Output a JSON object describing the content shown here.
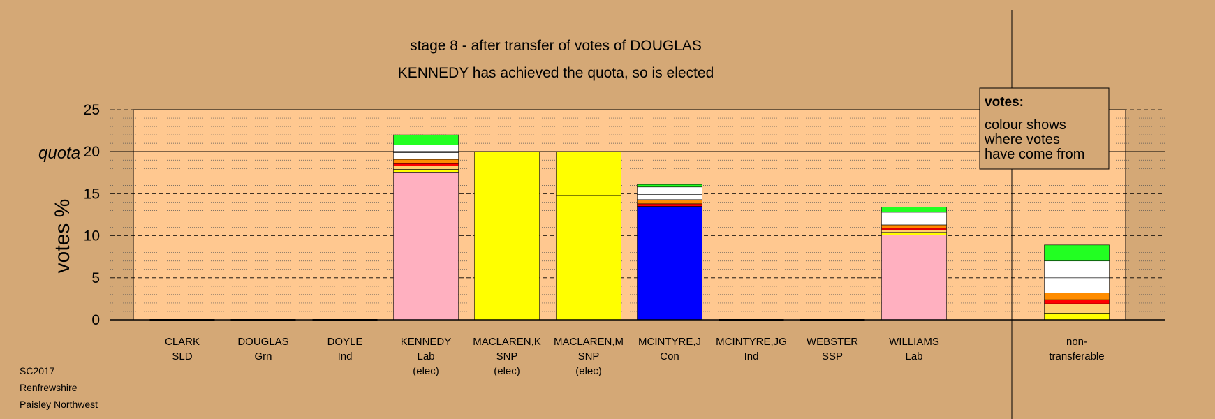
{
  "chart_data": {
    "type": "bar",
    "stacked": true,
    "title": "stage 8 - after transfer of votes of DOUGLAS",
    "subtitle": "KENNEDY has achieved the quota, so is elected",
    "ylabel": "votes %",
    "ylim": [
      0,
      25
    ],
    "yticks": [
      0,
      5,
      10,
      15,
      20,
      25
    ],
    "quota": 20,
    "quota_label": "quota",
    "grid": true,
    "legend": {
      "title": "votes:",
      "lines": [
        "colour shows",
        "where votes",
        "have come from"
      ]
    },
    "categories": [
      {
        "name": "CLARK",
        "party": "SLD",
        "note": ""
      },
      {
        "name": "DOUGLAS",
        "party": "Grn",
        "note": ""
      },
      {
        "name": "DOYLE",
        "party": "Ind",
        "note": ""
      },
      {
        "name": "KENNEDY",
        "party": "Lab",
        "note": "(elec)"
      },
      {
        "name": "MACLAREN,K",
        "party": "SNP",
        "note": "(elec)"
      },
      {
        "name": "MACLAREN,M",
        "party": "SNP",
        "note": "(elec)"
      },
      {
        "name": "MCINTYRE,J",
        "party": "Con",
        "note": ""
      },
      {
        "name": "MCINTYRE,JG",
        "party": "Ind",
        "note": ""
      },
      {
        "name": "WEBSTER",
        "party": "SSP",
        "note": ""
      },
      {
        "name": "WILLIAMS",
        "party": "Lab",
        "note": ""
      },
      {
        "name": "non-",
        "party": "transferable",
        "note": ""
      }
    ],
    "bars": [
      [],
      [],
      [],
      [
        {
          "value": 17.5,
          "color": "#ffb0c0"
        },
        {
          "value": 0.4,
          "color": "#ffff00"
        },
        {
          "value": 0.4,
          "color": "#ffd070"
        },
        {
          "value": 0.3,
          "color": "#ff0000"
        },
        {
          "value": 0.5,
          "color": "#ff8c00"
        },
        {
          "value": 0.8,
          "color": "#ffffff"
        },
        {
          "value": 0.9,
          "color": "#ffffff"
        },
        {
          "value": 1.2,
          "color": "#22ff22"
        }
      ],
      [
        {
          "value": 20.0,
          "color": "#ffff00"
        }
      ],
      [
        {
          "value": 14.8,
          "color": "#ffff00"
        },
        {
          "value": 5.2,
          "color": "#ffff00"
        }
      ],
      [
        {
          "value": 13.5,
          "color": "#0000ff"
        },
        {
          "value": 0.3,
          "color": "#ff0000"
        },
        {
          "value": 0.5,
          "color": "#ff8c00"
        },
        {
          "value": 0.6,
          "color": "#ffffff"
        },
        {
          "value": 0.9,
          "color": "#ffffff"
        },
        {
          "value": 0.3,
          "color": "#22ff22"
        }
      ],
      [],
      [],
      [
        {
          "value": 10.1,
          "color": "#ffb0c0"
        },
        {
          "value": 0.3,
          "color": "#ffff00"
        },
        {
          "value": 0.3,
          "color": "#ffd070"
        },
        {
          "value": 0.2,
          "color": "#ff0000"
        },
        {
          "value": 0.4,
          "color": "#ff8c00"
        },
        {
          "value": 0.7,
          "color": "#ffffff"
        },
        {
          "value": 0.8,
          "color": "#ffffff"
        },
        {
          "value": 0.6,
          "color": "#22ff22"
        }
      ],
      [
        {
          "value": 0.8,
          "color": "#ffff00"
        },
        {
          "value": 1.1,
          "color": "#ffd070"
        },
        {
          "value": 0.5,
          "color": "#ff0000"
        },
        {
          "value": 0.8,
          "color": "#ff8c00"
        },
        {
          "value": 1.8,
          "color": "#ffffff"
        },
        {
          "value": 2.0,
          "color": "#ffffff"
        },
        {
          "value": 1.9,
          "color": "#22ff22"
        }
      ]
    ]
  },
  "footer": [
    "SC2017",
    "Renfrewshire",
    "Paisley Northwest"
  ],
  "colors": {
    "background": "#d4a876",
    "plot_background": "#ffc890",
    "nontransferable_background": "#d4a876"
  }
}
